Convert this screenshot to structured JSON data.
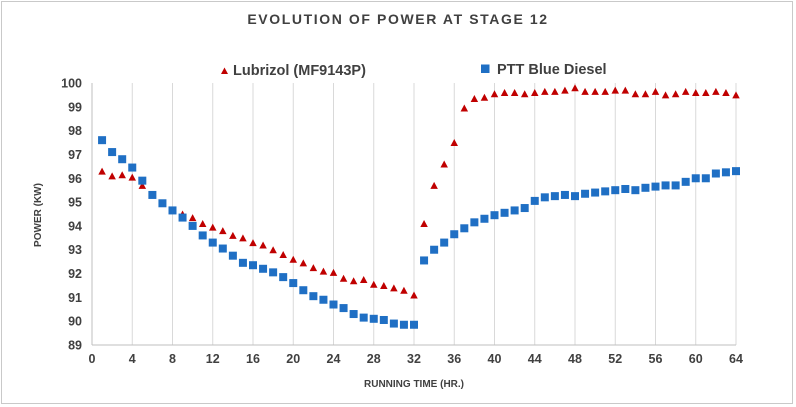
{
  "chart_data": {
    "type": "scatter",
    "title": "EVOLUTION OF POWER AT STAGE 12",
    "xlabel": "RUNNING TIME (HR.)",
    "ylabel": "POWER (KW)",
    "xlim": [
      0,
      64
    ],
    "ylim": [
      89,
      100
    ],
    "xticks": [
      0,
      4,
      8,
      12,
      16,
      20,
      24,
      28,
      32,
      36,
      40,
      44,
      48,
      52,
      56,
      60,
      64
    ],
    "yticks": [
      89,
      90,
      91,
      92,
      93,
      94,
      95,
      96,
      97,
      98,
      99,
      100
    ],
    "grid": "vertical",
    "legend_position": "top",
    "series": [
      {
        "name": "Lubrizol (MF9143P)",
        "marker": "triangle",
        "color": "#c00000",
        "x": [
          1,
          2,
          3,
          4,
          5,
          6,
          7,
          8,
          9,
          10,
          11,
          12,
          13,
          14,
          15,
          16,
          17,
          18,
          19,
          20,
          21,
          22,
          23,
          24,
          25,
          26,
          27,
          28,
          29,
          30,
          31,
          32,
          33,
          34,
          35,
          36,
          37,
          38,
          39,
          40,
          41,
          42,
          43,
          44,
          45,
          46,
          47,
          48,
          49,
          50,
          51,
          52,
          53,
          54,
          55,
          56,
          57,
          58,
          59,
          60,
          61,
          62,
          63,
          64
        ],
        "y": [
          96.3,
          96.1,
          96.15,
          96.05,
          95.7,
          95.3,
          94.95,
          94.65,
          94.5,
          94.35,
          94.1,
          93.95,
          93.8,
          93.6,
          93.5,
          93.3,
          93.2,
          93.0,
          92.8,
          92.6,
          92.45,
          92.25,
          92.1,
          92.05,
          91.8,
          91.7,
          91.75,
          91.55,
          91.5,
          91.4,
          91.3,
          91.1,
          94.1,
          95.7,
          96.6,
          97.5,
          98.95,
          99.35,
          99.4,
          99.55,
          99.6,
          99.6,
          99.55,
          99.6,
          99.65,
          99.65,
          99.7,
          99.8,
          99.65,
          99.65,
          99.65,
          99.7,
          99.7,
          99.55,
          99.55,
          99.65,
          99.5,
          99.55,
          99.65,
          99.6,
          99.6,
          99.65,
          99.6,
          99.5
        ]
      },
      {
        "name": "PTT Blue Diesel",
        "marker": "square",
        "color": "#1f6fc4",
        "x": [
          1,
          2,
          3,
          4,
          5,
          6,
          7,
          8,
          9,
          10,
          11,
          12,
          13,
          14,
          15,
          16,
          17,
          18,
          19,
          20,
          21,
          22,
          23,
          24,
          25,
          26,
          27,
          28,
          29,
          30,
          31,
          32,
          33,
          34,
          35,
          36,
          37,
          38,
          39,
          40,
          41,
          42,
          43,
          44,
          45,
          46,
          47,
          48,
          49,
          50,
          51,
          52,
          53,
          54,
          55,
          56,
          57,
          58,
          59,
          60,
          61,
          62,
          63,
          64
        ],
        "y": [
          97.6,
          97.1,
          96.8,
          96.45,
          95.9,
          95.3,
          94.95,
          94.65,
          94.35,
          94.0,
          93.6,
          93.3,
          93.05,
          92.75,
          92.45,
          92.35,
          92.2,
          92.05,
          91.85,
          91.6,
          91.3,
          91.05,
          90.9,
          90.7,
          90.55,
          90.3,
          90.15,
          90.1,
          90.05,
          89.9,
          89.85,
          89.85,
          92.55,
          93.0,
          93.3,
          93.65,
          93.9,
          94.15,
          94.3,
          94.45,
          94.55,
          94.65,
          94.75,
          95.05,
          95.2,
          95.25,
          95.3,
          95.25,
          95.35,
          95.4,
          95.45,
          95.5,
          95.55,
          95.5,
          95.6,
          95.65,
          95.7,
          95.7,
          95.85,
          96.0,
          96.0,
          96.2,
          96.25,
          96.3
        ]
      }
    ]
  }
}
